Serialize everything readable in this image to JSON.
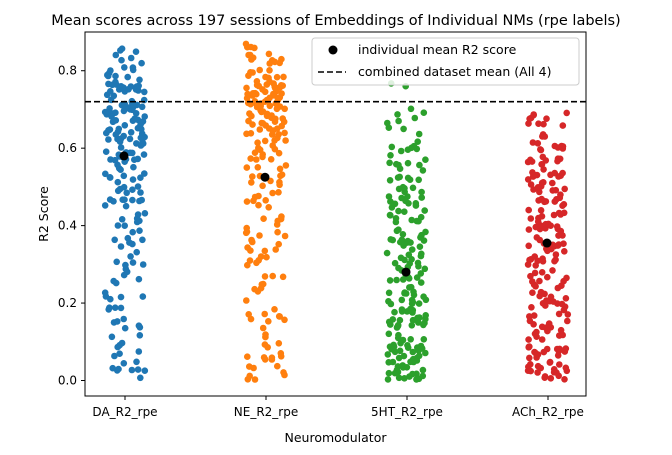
{
  "chart_data": {
    "type": "scatter",
    "title": "Mean scores across 197 sessions of Embeddings of Individual NMs (rpe labels)",
    "xlabel": "Neuromodulator",
    "ylabel": "R2 Score",
    "categories": [
      "DA_R2_rpe",
      "NE_R2_rpe",
      "5HT_R2_rpe",
      "ACh_R2_rpe"
    ],
    "ylim": [
      -0.04,
      0.9
    ],
    "yticks": [
      "0.0",
      "0.2",
      "0.4",
      "0.6",
      "0.8"
    ],
    "grid": false,
    "legend": {
      "position": "top-right",
      "entries": [
        "individual mean R2 score",
        "combined dataset mean (All 4)"
      ]
    },
    "combined_mean": 0.72,
    "series": [
      {
        "category": "DA_R2_rpe",
        "color": "#1f77b4",
        "mean": 0.58,
        "count": 197,
        "distribution": [
          [
            0.02,
            0.06
          ],
          [
            0.06,
            0.04
          ],
          [
            0.1,
            0.04
          ],
          [
            0.14,
            0.05
          ],
          [
            0.18,
            0.03
          ],
          [
            0.22,
            0.04
          ],
          [
            0.26,
            0.03
          ],
          [
            0.3,
            0.05
          ],
          [
            0.34,
            0.04
          ],
          [
            0.38,
            0.05
          ],
          [
            0.42,
            0.06
          ],
          [
            0.46,
            0.07
          ],
          [
            0.5,
            0.07
          ],
          [
            0.54,
            0.08
          ],
          [
            0.58,
            0.11
          ],
          [
            0.62,
            0.13
          ],
          [
            0.66,
            0.15
          ],
          [
            0.7,
            0.18
          ],
          [
            0.74,
            0.14
          ],
          [
            0.78,
            0.09
          ],
          [
            0.82,
            0.06
          ],
          [
            0.86,
            0.03
          ]
        ]
      },
      {
        "category": "NE_R2_rpe",
        "color": "#ff7f0e",
        "mean": 0.525,
        "count": 197,
        "distribution": [
          [
            0.02,
            0.06
          ],
          [
            0.06,
            0.05
          ],
          [
            0.1,
            0.04
          ],
          [
            0.14,
            0.03
          ],
          [
            0.18,
            0.04
          ],
          [
            0.22,
            0.03
          ],
          [
            0.26,
            0.04
          ],
          [
            0.3,
            0.04
          ],
          [
            0.34,
            0.05
          ],
          [
            0.38,
            0.05
          ],
          [
            0.42,
            0.04
          ],
          [
            0.46,
            0.05
          ],
          [
            0.5,
            0.05
          ],
          [
            0.54,
            0.06
          ],
          [
            0.58,
            0.07
          ],
          [
            0.62,
            0.09
          ],
          [
            0.66,
            0.12
          ],
          [
            0.7,
            0.17
          ],
          [
            0.74,
            0.16
          ],
          [
            0.78,
            0.11
          ],
          [
            0.82,
            0.07
          ],
          [
            0.86,
            0.04
          ]
        ]
      },
      {
        "category": "5HT_R2_rpe",
        "color": "#2ca02c",
        "mean": 0.28,
        "count": 197,
        "distribution": [
          [
            0.02,
            0.14
          ],
          [
            0.06,
            0.13
          ],
          [
            0.1,
            0.12
          ],
          [
            0.14,
            0.11
          ],
          [
            0.18,
            0.1
          ],
          [
            0.22,
            0.09
          ],
          [
            0.26,
            0.08
          ],
          [
            0.3,
            0.08
          ],
          [
            0.34,
            0.08
          ],
          [
            0.38,
            0.08
          ],
          [
            0.42,
            0.08
          ],
          [
            0.46,
            0.08
          ],
          [
            0.5,
            0.07
          ],
          [
            0.54,
            0.06
          ],
          [
            0.58,
            0.05
          ],
          [
            0.62,
            0.04
          ],
          [
            0.66,
            0.04
          ],
          [
            0.7,
            0.02
          ],
          [
            0.76,
            0.02
          ]
        ]
      },
      {
        "category": "ACh_R2_rpe",
        "color": "#d62728",
        "mean": 0.355,
        "count": 197,
        "distribution": [
          [
            0.02,
            0.12
          ],
          [
            0.06,
            0.1
          ],
          [
            0.1,
            0.09
          ],
          [
            0.14,
            0.09
          ],
          [
            0.18,
            0.08
          ],
          [
            0.22,
            0.08
          ],
          [
            0.26,
            0.08
          ],
          [
            0.3,
            0.08
          ],
          [
            0.34,
            0.09
          ],
          [
            0.38,
            0.09
          ],
          [
            0.42,
            0.09
          ],
          [
            0.46,
            0.09
          ],
          [
            0.5,
            0.09
          ],
          [
            0.54,
            0.08
          ],
          [
            0.58,
            0.08
          ],
          [
            0.62,
            0.07
          ],
          [
            0.66,
            0.05
          ],
          [
            0.7,
            0.02
          ],
          [
            0.75,
            0.02
          ]
        ]
      }
    ]
  }
}
